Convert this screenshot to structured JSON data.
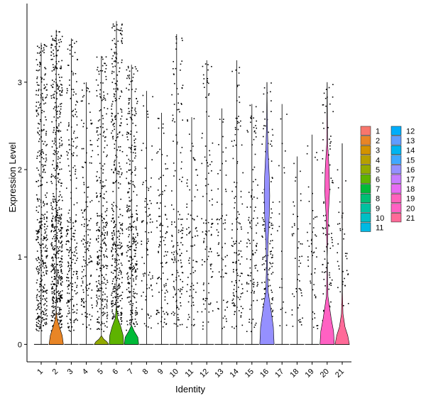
{
  "chart_data": {
    "type": "violin",
    "title": "",
    "xlabel": "Identity",
    "ylabel": "Expression Level",
    "ylim": [
      -0.2,
      3.9
    ],
    "yticks": [
      0,
      1,
      2,
      3
    ],
    "categories": [
      "1",
      "2",
      "3",
      "4",
      "5",
      "6",
      "7",
      "8",
      "9",
      "10",
      "11",
      "12",
      "13",
      "14",
      "15",
      "16",
      "17",
      "18",
      "19",
      "20",
      "21"
    ],
    "legend_position": "right",
    "legend_columns": [
      [
        "1",
        "2",
        "3",
        "4",
        "5",
        "6",
        "7",
        "8",
        "9",
        "10",
        "11"
      ],
      [
        "12",
        "13",
        "14",
        "15",
        "16",
        "17",
        "18",
        "19",
        "20",
        "21"
      ]
    ],
    "colors": [
      "#F8766D",
      "#E88526",
      "#D39200",
      "#B79F00",
      "#93AA00",
      "#5EB300",
      "#00BA38",
      "#00BF74",
      "#00C19F",
      "#00BFC4",
      "#00B9E3",
      "#00ADFA",
      "#619CFF",
      "#00B4F0",
      "#3FA8FF",
      "#9590FF",
      "#C77CFF",
      "#E76BF3",
      "#FF62BC",
      "#FF61C3",
      "#FF6A98"
    ],
    "series": [
      {
        "name": "1",
        "max": 3.45,
        "dot_density": 1.0,
        "violin": [
          [
            0,
            0
          ]
        ]
      },
      {
        "name": "2",
        "max": 3.6,
        "dot_density": 1.3,
        "violin": [
          [
            0,
            0.18
          ],
          [
            0.1,
            0.15
          ],
          [
            0.2,
            0.08
          ],
          [
            0.3,
            0.02
          ],
          [
            0.4,
            0.0
          ]
        ]
      },
      {
        "name": "3",
        "max": 3.5,
        "dot_density": 0.55,
        "violin": [
          [
            0,
            0
          ]
        ]
      },
      {
        "name": "4",
        "max": 3.0,
        "dot_density": 0.35,
        "violin": [
          [
            0,
            0
          ]
        ]
      },
      {
        "name": "5",
        "max": 3.3,
        "dot_density": 0.7,
        "violin": [
          [
            0,
            0.18
          ],
          [
            0.03,
            0.14
          ],
          [
            0.06,
            0.06
          ],
          [
            0.1,
            0.0
          ]
        ]
      },
      {
        "name": "6",
        "max": 3.7,
        "dot_density": 0.9,
        "violin": [
          [
            0,
            0.18
          ],
          [
            0.1,
            0.17
          ],
          [
            0.2,
            0.11
          ],
          [
            0.3,
            0.03
          ],
          [
            0.45,
            0.0
          ]
        ]
      },
      {
        "name": "7",
        "max": 3.2,
        "dot_density": 0.75,
        "violin": [
          [
            0,
            0.18
          ],
          [
            0.08,
            0.16
          ],
          [
            0.15,
            0.07
          ],
          [
            0.22,
            0.0
          ]
        ]
      },
      {
        "name": "8",
        "max": 2.9,
        "dot_density": 0.2,
        "violin": [
          [
            0,
            0
          ]
        ]
      },
      {
        "name": "9",
        "max": 2.65,
        "dot_density": 0.25,
        "violin": [
          [
            0,
            0
          ]
        ]
      },
      {
        "name": "10",
        "max": 3.55,
        "dot_density": 0.35,
        "violin": [
          [
            0,
            0
          ]
        ]
      },
      {
        "name": "11",
        "max": 2.6,
        "dot_density": 0.2,
        "violin": [
          [
            0,
            0
          ]
        ]
      },
      {
        "name": "12",
        "max": 3.25,
        "dot_density": 0.25,
        "violin": [
          [
            0,
            0
          ]
        ]
      },
      {
        "name": "13",
        "max": 2.7,
        "dot_density": 0.15,
        "violin": [
          [
            0,
            0
          ]
        ]
      },
      {
        "name": "14",
        "max": 3.25,
        "dot_density": 0.3,
        "violin": [
          [
            0,
            0
          ]
        ]
      },
      {
        "name": "15",
        "max": 2.75,
        "dot_density": 0.25,
        "violin": [
          [
            0,
            0
          ]
        ]
      },
      {
        "name": "16",
        "max": 3.0,
        "dot_density": 0.35,
        "violin": [
          [
            0,
            0.18
          ],
          [
            0.2,
            0.16
          ],
          [
            0.4,
            0.1
          ],
          [
            0.6,
            0.03
          ],
          [
            0.9,
            0.01
          ],
          [
            1.2,
            0.03
          ],
          [
            1.5,
            0.06
          ],
          [
            1.7,
            0.07
          ],
          [
            1.9,
            0.06
          ],
          [
            2.2,
            0.03
          ],
          [
            2.5,
            0.01
          ],
          [
            3.0,
            0.0
          ]
        ]
      },
      {
        "name": "17",
        "max": 2.75,
        "dot_density": 0.05,
        "violin": [
          [
            0,
            0
          ]
        ]
      },
      {
        "name": "18",
        "max": 2.15,
        "dot_density": 0.12,
        "violin": [
          [
            0,
            0
          ]
        ]
      },
      {
        "name": "19",
        "max": 2.4,
        "dot_density": 0.12,
        "violin": [
          [
            0,
            0
          ]
        ]
      },
      {
        "name": "20",
        "max": 3.0,
        "dot_density": 0.25,
        "violin": [
          [
            0,
            0.18
          ],
          [
            0.15,
            0.16
          ],
          [
            0.3,
            0.1
          ],
          [
            0.55,
            0.02
          ],
          [
            1.0,
            0.0
          ],
          [
            1.5,
            0.03
          ],
          [
            1.75,
            0.06
          ],
          [
            2.0,
            0.05
          ],
          [
            2.3,
            0.01
          ],
          [
            3.0,
            0.0
          ]
        ]
      },
      {
        "name": "21",
        "max": 2.3,
        "dot_density": 0.1,
        "violin": [
          [
            0,
            0.18
          ],
          [
            0.1,
            0.14
          ],
          [
            0.2,
            0.07
          ],
          [
            0.35,
            0.02
          ],
          [
            0.6,
            0.005
          ],
          [
            2.3,
            0.0
          ]
        ]
      }
    ]
  }
}
